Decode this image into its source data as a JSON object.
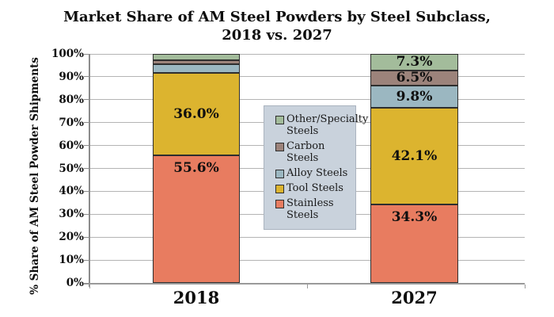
{
  "title": {
    "line1": "Market Share of AM Steel Powders by Steel Subclass,",
    "line2": "2018 vs. 2027"
  },
  "y_axis": {
    "label": "% Share of AM Steel Powder Shipments",
    "ticks": [
      "100%",
      "90%",
      "80%",
      "70%",
      "60%",
      "50%",
      "40%",
      "30%",
      "20%",
      "10%",
      "0%"
    ]
  },
  "x_axis": {
    "categories": [
      "2018",
      "2027"
    ]
  },
  "legend": {
    "items": [
      {
        "label": "Other/Specialty Steels",
        "color": "#a3bc9b"
      },
      {
        "label": "Carbon Steels",
        "color": "#9c837b"
      },
      {
        "label": "Alloy Steels",
        "color": "#9bb7c1"
      },
      {
        "label": "Tool Steels",
        "color": "#dcb42f"
      },
      {
        "label": "Stainless Steels",
        "color": "#e87c60"
      }
    ]
  },
  "chart_data": {
    "type": "bar",
    "stacked": true,
    "title": "Market Share of AM Steel Powders by Steel Subclass, 2018 vs. 2027",
    "xlabel": "",
    "ylabel": "% Share of AM Steel Powder Shipments",
    "ylim": [
      0,
      100
    ],
    "grid": true,
    "legend_position": "center-overlay",
    "categories": [
      "2018",
      "2027"
    ],
    "series": [
      {
        "name": "Stainless Steels",
        "color": "#e87c60",
        "values": [
          55.6,
          34.3
        ],
        "data_labels": [
          "55.6%",
          "34.3%"
        ],
        "label_position": "near-top"
      },
      {
        "name": "Tool Steels",
        "color": "#dcb42f",
        "values": [
          36.0,
          42.1
        ],
        "data_labels": [
          "36.0%",
          "42.1%"
        ],
        "label_position": "center"
      },
      {
        "name": "Alloy Steels",
        "color": "#9bb7c1",
        "values": [
          3.9,
          9.8
        ],
        "data_labels": [
          "",
          "9.8%"
        ],
        "label_position": "center"
      },
      {
        "name": "Carbon Steels",
        "color": "#9c837b",
        "values": [
          1.8,
          6.5
        ],
        "data_labels": [
          "",
          "6.5%"
        ],
        "label_position": "center"
      },
      {
        "name": "Other/Specialty Steels",
        "color": "#a3bc9b",
        "values": [
          2.7,
          7.3
        ],
        "data_labels": [
          "",
          "7.3%"
        ],
        "label_position": "center"
      }
    ]
  }
}
